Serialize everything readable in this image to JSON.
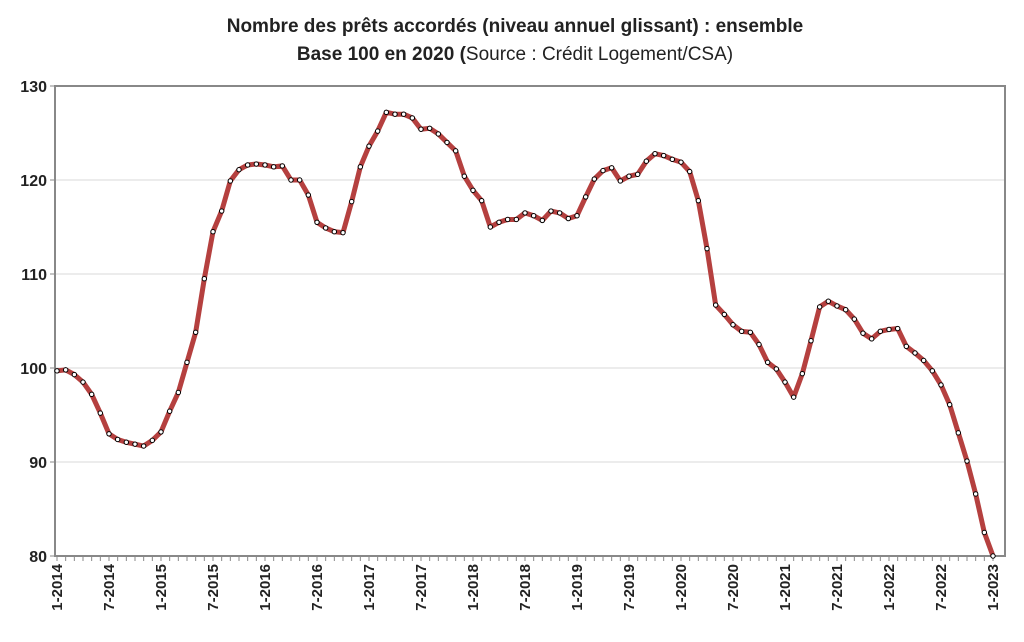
{
  "chart_data": {
    "type": "line",
    "title": "Nombre des prêts accordés (niveau annuel glissant) : ensemble",
    "subtitle": [
      "Base 100 en 2020 (",
      "Source : Crédit Logement/CSA)"
    ],
    "categories": [
      "1-2014",
      null,
      null,
      null,
      null,
      null,
      "7-2014",
      null,
      null,
      null,
      null,
      null,
      "1-2015",
      null,
      null,
      null,
      null,
      null,
      "7-2015",
      null,
      null,
      null,
      null,
      null,
      "1-2016",
      null,
      null,
      null,
      null,
      null,
      "7-2016",
      null,
      null,
      null,
      null,
      null,
      "1-2017",
      null,
      null,
      null,
      null,
      null,
      "7-2017",
      null,
      null,
      null,
      null,
      null,
      "1-2018",
      null,
      null,
      null,
      null,
      null,
      "7-2018",
      null,
      null,
      null,
      null,
      null,
      "1-2019",
      null,
      null,
      null,
      null,
      null,
      "7-2019",
      null,
      null,
      null,
      null,
      null,
      "1-2020",
      null,
      null,
      null,
      null,
      null,
      "7-2020",
      null,
      null,
      null,
      null,
      null,
      "1-2021",
      null,
      null,
      null,
      null,
      null,
      "7-2021",
      null,
      null,
      null,
      null,
      null,
      "1-2022",
      null,
      null,
      null,
      null,
      null,
      "7-2022",
      null,
      null,
      null,
      null,
      null,
      "1-2023"
    ],
    "values": [
      99.7,
      99.8,
      99.3,
      98.5,
      97.2,
      95.2,
      93.0,
      92.4,
      92.1,
      91.9,
      91.7,
      92.3,
      93.2,
      95.4,
      97.4,
      100.6,
      103.8,
      109.5,
      114.5,
      116.7,
      119.9,
      121.1,
      121.6,
      121.7,
      121.6,
      121.4,
      121.5,
      120.0,
      120.0,
      118.4,
      115.5,
      114.9,
      114.5,
      114.4,
      117.7,
      121.4,
      123.6,
      125.2,
      127.2,
      127.0,
      127.0,
      126.6,
      125.4,
      125.5,
      124.9,
      124.0,
      123.1,
      120.4,
      118.9,
      117.8,
      115.0,
      115.5,
      115.8,
      115.8,
      116.5,
      116.2,
      115.7,
      116.7,
      116.5,
      115.9,
      116.2,
      118.2,
      120.1,
      121.0,
      121.3,
      119.9,
      120.4,
      120.6,
      122.0,
      122.8,
      122.6,
      122.2,
      121.9,
      120.9,
      117.8,
      112.7,
      106.7,
      105.7,
      104.6,
      103.9,
      103.8,
      102.5,
      100.6,
      99.9,
      98.5,
      96.9,
      99.4,
      102.9,
      106.5,
      107.1,
      106.6,
      106.2,
      105.2,
      103.7,
      103.1,
      103.9,
      104.1,
      104.2,
      102.3,
      101.6,
      100.8,
      99.7,
      98.2,
      96.1,
      93.1,
      90.1,
      86.6,
      82.5,
      80.0
    ],
    "color": "#b5403f",
    "ylim": [
      80,
      130
    ],
    "yticks": [
      80,
      90,
      100,
      110,
      120,
      130
    ],
    "grid": true
  }
}
